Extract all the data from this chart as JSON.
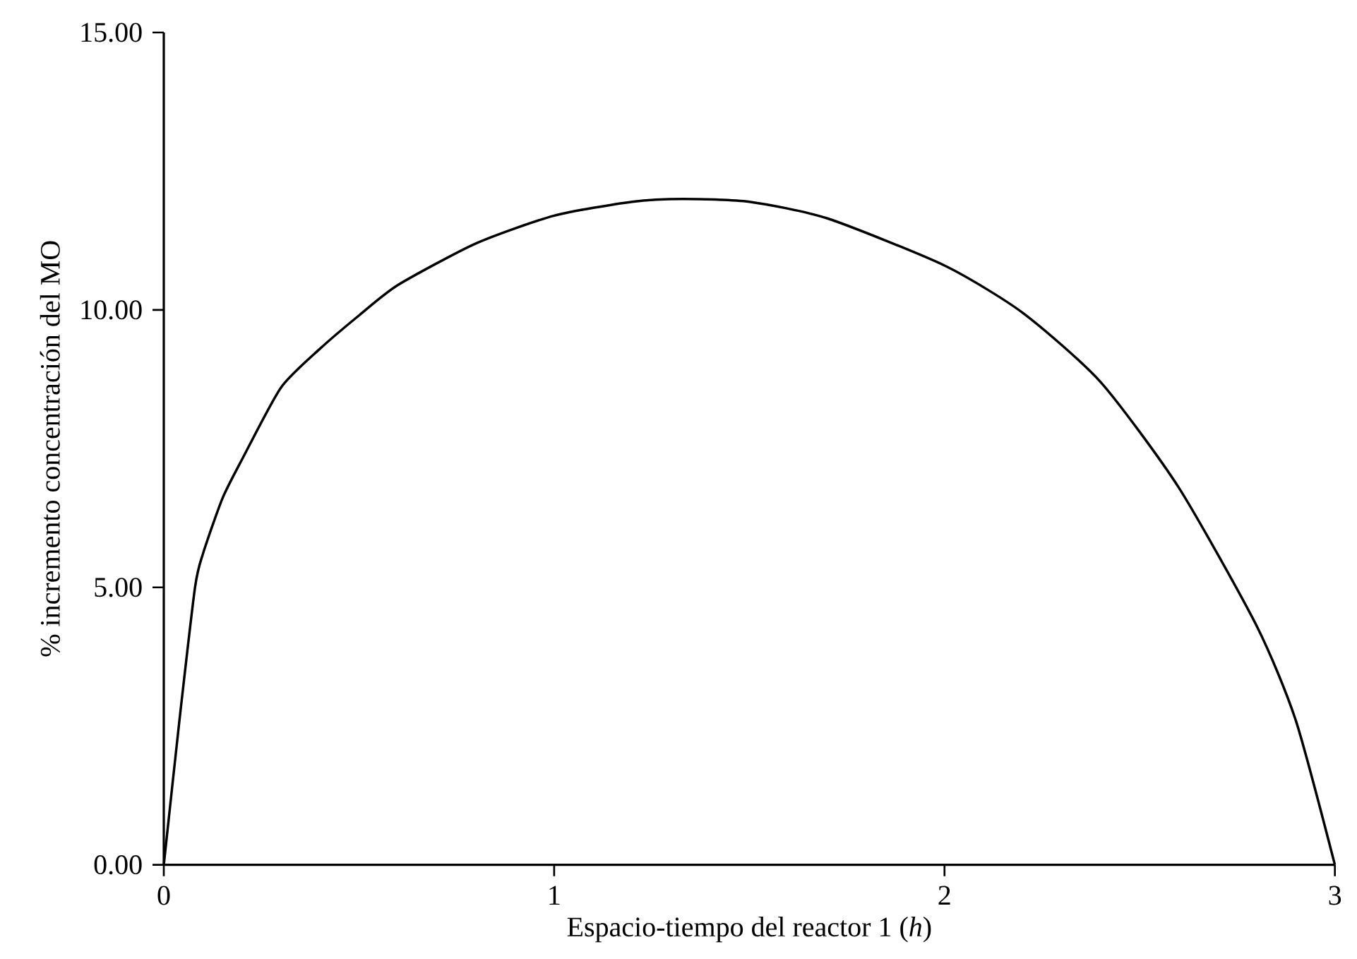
{
  "chart_data": {
    "type": "line",
    "xlabel": "Espacio-tiempo del reactor 1 (*h*)",
    "ylabel": "% incremento concentración del MO",
    "x": [
      0,
      0.04,
      0.08,
      0.1,
      0.15,
      0.2,
      0.3,
      0.4,
      0.5,
      0.6,
      0.8,
      1.0,
      1.2,
      1.33,
      1.5,
      1.7,
      2.0,
      2.2,
      2.4,
      2.6,
      2.8,
      2.9,
      3.0
    ],
    "series": [
      {
        "color": "#000000",
        "values": [
          0,
          2.6,
          5.0,
          5.6,
          6.6,
          7.3,
          8.6,
          9.3,
          9.9,
          10.45,
          11.2,
          11.7,
          11.95,
          12.0,
          11.95,
          11.65,
          10.8,
          9.95,
          8.7,
          6.8,
          4.3,
          2.6,
          0
        ]
      }
    ],
    "xlim": [
      0,
      3
    ],
    "ylim": [
      0,
      15
    ],
    "xticks": [
      0,
      1,
      2,
      3
    ],
    "yticks": [
      {
        "value": 0,
        "label": "0.00"
      },
      {
        "value": 5,
        "label": "5.00"
      },
      {
        "value": 10,
        "label": "10.00"
      },
      {
        "value": 15,
        "label": "15.00"
      }
    ],
    "grid": false,
    "marker": "none",
    "line_style": "solid"
  }
}
